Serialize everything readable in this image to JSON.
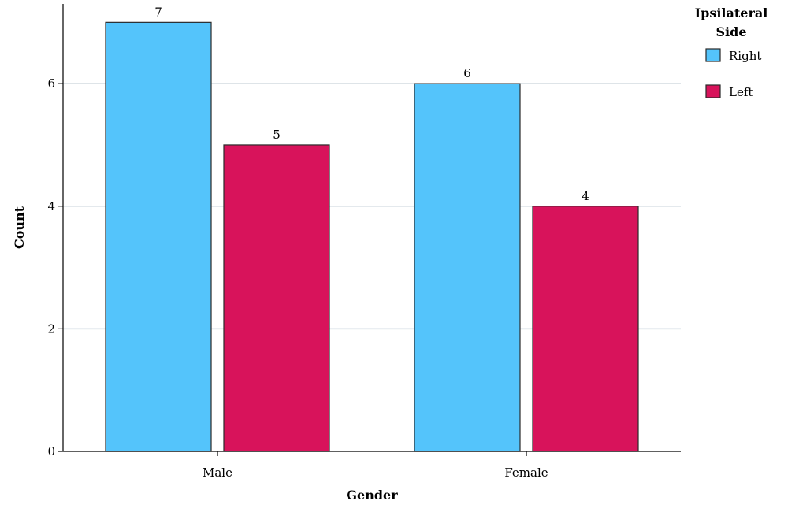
{
  "chart_data": {
    "type": "bar",
    "categories": [
      "Male",
      "Female"
    ],
    "series": [
      {
        "name": "Right",
        "values": [
          7,
          6
        ],
        "color": "#54c4fb"
      },
      {
        "name": "Left",
        "values": [
          5,
          4
        ],
        "color": "#d8135b"
      }
    ],
    "xlabel": "Gender",
    "ylabel": "Count",
    "ylim": [
      0,
      7.3
    ],
    "yticks": [
      0,
      2,
      4,
      6
    ],
    "legend": {
      "title_lines": [
        "Ipsilateral",
        "Side"
      ],
      "position": "top-right"
    },
    "grid": "horizontal",
    "data_labels": true
  },
  "colors": {
    "grid": "#c9d3db",
    "axis": "#000000",
    "bar_outline": "#2a2a2a"
  }
}
